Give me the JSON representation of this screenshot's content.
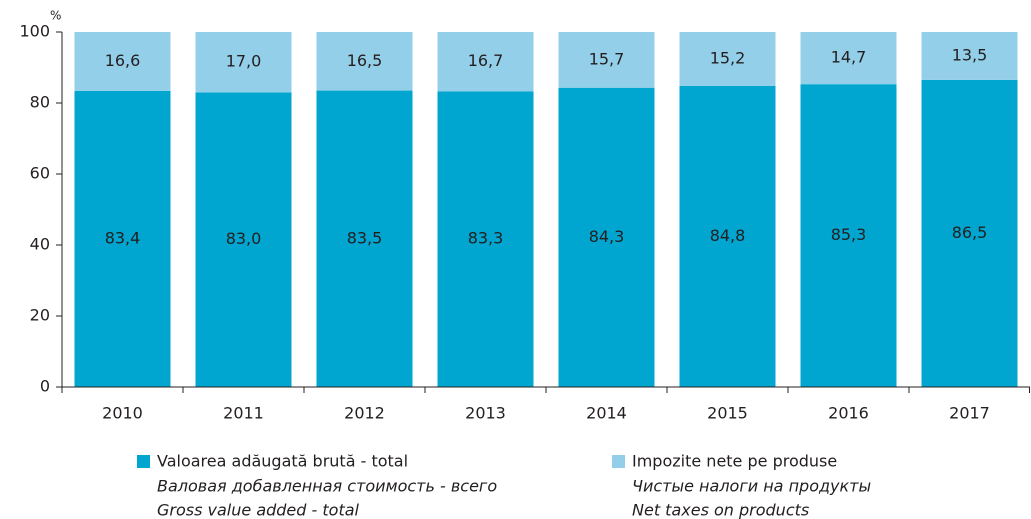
{
  "chart_data": {
    "type": "stacked_bar",
    "ylabel": "%",
    "categories": [
      "2010",
      "2011",
      "2012",
      "2013",
      "2014",
      "2015",
      "2016",
      "2017"
    ],
    "series": [
      {
        "name": "Valoarea adăugată brută - total",
        "translations": [
          "Валовая добавленная стоимость - всего",
          "Gross value added  - total"
        ],
        "color": "#00a6d0",
        "values": [
          83.4,
          83.0,
          83.5,
          83.3,
          84.3,
          84.8,
          85.3,
          86.5
        ],
        "value_labels": [
          "83,4",
          "83,0",
          "83,5",
          "83,3",
          "84,3",
          "84,8",
          "85,3",
          "86,5"
        ]
      },
      {
        "name": "Impozite nete pe produse",
        "translations": [
          "Чистые налоги на продукты",
          "Net taxes on products"
        ],
        "color": "#93cfe8",
        "values": [
          16.6,
          17.0,
          16.5,
          16.7,
          15.7,
          15.2,
          14.7,
          13.5
        ],
        "value_labels": [
          "16,6",
          "17,0",
          "16,5",
          "16,7",
          "15,7",
          "15,2",
          "14,7",
          "13,5"
        ]
      }
    ],
    "ylim": [
      0,
      100
    ],
    "yticks": [
      0,
      20,
      40,
      60,
      80,
      100
    ],
    "legend": "bottom"
  }
}
